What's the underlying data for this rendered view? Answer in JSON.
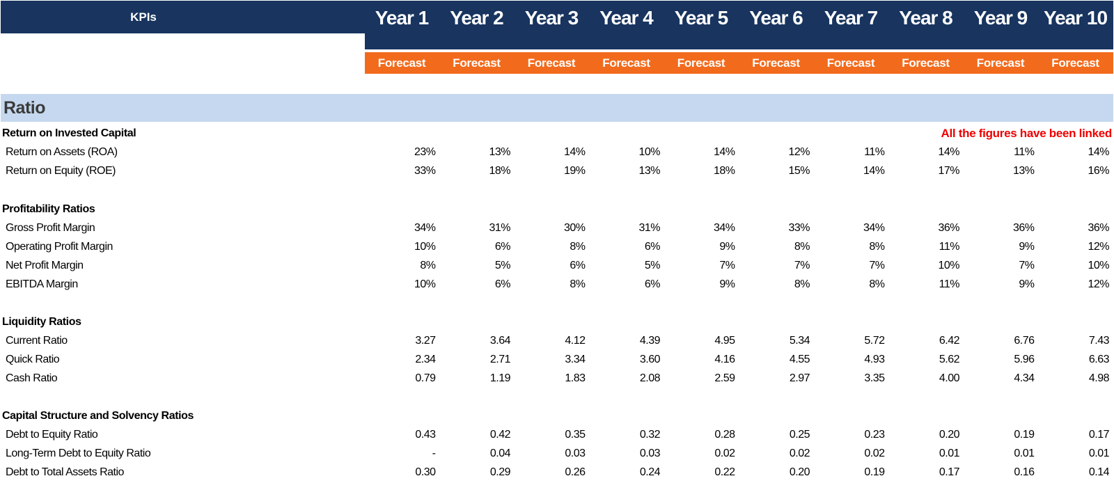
{
  "header": {
    "title": "KPIs",
    "years": [
      "Year 1",
      "Year 2",
      "Year 3",
      "Year 4",
      "Year 5",
      "Year 6",
      "Year 7",
      "Year 8",
      "Year 9",
      "Year 10"
    ],
    "period_labels": [
      "Forecast",
      "Forecast",
      "Forecast",
      "Forecast",
      "Forecast",
      "Forecast",
      "Forecast",
      "Forecast",
      "Forecast",
      "Forecast"
    ]
  },
  "colors": {
    "navy": "#18345f",
    "orange": "#f26b1d",
    "band": "#c5d8ef",
    "note_red": "#ee0000"
  },
  "ratio": {
    "title": "Ratio",
    "note": "All the figures have been linked",
    "sections": [
      {
        "title": "Return on Invested Capital",
        "rows": [
          {
            "label": "Return on Assets (ROA)",
            "values": [
              "23%",
              "13%",
              "14%",
              "10%",
              "14%",
              "12%",
              "11%",
              "14%",
              "11%",
              "14%"
            ]
          },
          {
            "label": "Return on Equity (ROE)",
            "values": [
              "33%",
              "18%",
              "19%",
              "13%",
              "18%",
              "15%",
              "14%",
              "17%",
              "13%",
              "16%"
            ]
          }
        ]
      },
      {
        "title": "Profitability Ratios",
        "rows": [
          {
            "label": "Gross Profit Margin",
            "values": [
              "34%",
              "31%",
              "30%",
              "31%",
              "34%",
              "33%",
              "34%",
              "36%",
              "36%",
              "36%"
            ]
          },
          {
            "label": "Operating Profit Margin",
            "values": [
              "10%",
              "6%",
              "8%",
              "6%",
              "9%",
              "8%",
              "8%",
              "11%",
              "9%",
              "12%"
            ]
          },
          {
            "label": "Net Profit Margin",
            "values": [
              "8%",
              "5%",
              "6%",
              "5%",
              "7%",
              "7%",
              "7%",
              "10%",
              "7%",
              "10%"
            ]
          },
          {
            "label": "EBITDA Margin",
            "values": [
              "10%",
              "6%",
              "8%",
              "6%",
              "9%",
              "8%",
              "8%",
              "11%",
              "9%",
              "12%"
            ]
          }
        ]
      },
      {
        "title": "Liquidity Ratios",
        "rows": [
          {
            "label": "Current Ratio",
            "values": [
              "3.27",
              "3.64",
              "4.12",
              "4.39",
              "4.95",
              "5.34",
              "5.72",
              "6.42",
              "6.76",
              "7.43"
            ]
          },
          {
            "label": "Quick Ratio",
            "values": [
              "2.34",
              "2.71",
              "3.34",
              "3.60",
              "4.16",
              "4.55",
              "4.93",
              "5.62",
              "5.96",
              "6.63"
            ]
          },
          {
            "label": "Cash Ratio",
            "values": [
              "0.79",
              "1.19",
              "1.83",
              "2.08",
              "2.59",
              "2.97",
              "3.35",
              "4.00",
              "4.34",
              "4.98"
            ]
          }
        ]
      },
      {
        "title": "Capital Structure and Solvency Ratios",
        "rows": [
          {
            "label": "Debt to Equity Ratio",
            "values": [
              "0.43",
              "0.42",
              "0.35",
              "0.32",
              "0.28",
              "0.25",
              "0.23",
              "0.20",
              "0.19",
              "0.17"
            ]
          },
          {
            "label": "Long-Term Debt to Equity Ratio",
            "values": [
              "-",
              "0.04",
              "0.03",
              "0.03",
              "0.02",
              "0.02",
              "0.02",
              "0.01",
              "0.01",
              "0.01"
            ]
          },
          {
            "label": "Debt to Total Assets Ratio",
            "values": [
              "0.30",
              "0.29",
              "0.26",
              "0.24",
              "0.22",
              "0.20",
              "0.19",
              "0.17",
              "0.16",
              "0.14"
            ]
          }
        ]
      }
    ]
  }
}
